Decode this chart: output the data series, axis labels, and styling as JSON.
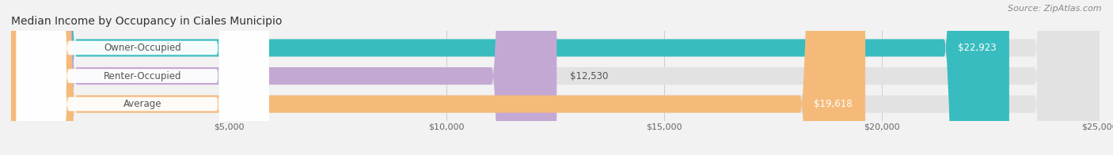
{
  "title": "Median Income by Occupancy in Ciales Municipio",
  "source": "Source: ZipAtlas.com",
  "categories": [
    "Owner-Occupied",
    "Renter-Occupied",
    "Average"
  ],
  "values": [
    22923,
    12530,
    19618
  ],
  "bar_colors": [
    "#38bcbf",
    "#c4a8d4",
    "#f5ba7a"
  ],
  "label_text_color": "#555555",
  "value_label_colors": [
    "#ffffff",
    "#666666",
    "#ffffff"
  ],
  "value_labels": [
    "$22,923",
    "$12,530",
    "$19,618"
  ],
  "xlim": [
    0,
    25000
  ],
  "xticks": [
    5000,
    10000,
    15000,
    20000,
    25000
  ],
  "xtick_labels": [
    "$5,000",
    "$10,000",
    "$15,000",
    "$20,000",
    "$25,000"
  ],
  "background_color": "#f2f2f2",
  "bar_bg_color": "#e2e2e2",
  "title_fontsize": 10,
  "source_fontsize": 8,
  "figsize": [
    14.06,
    1.96
  ],
  "dpi": 100
}
